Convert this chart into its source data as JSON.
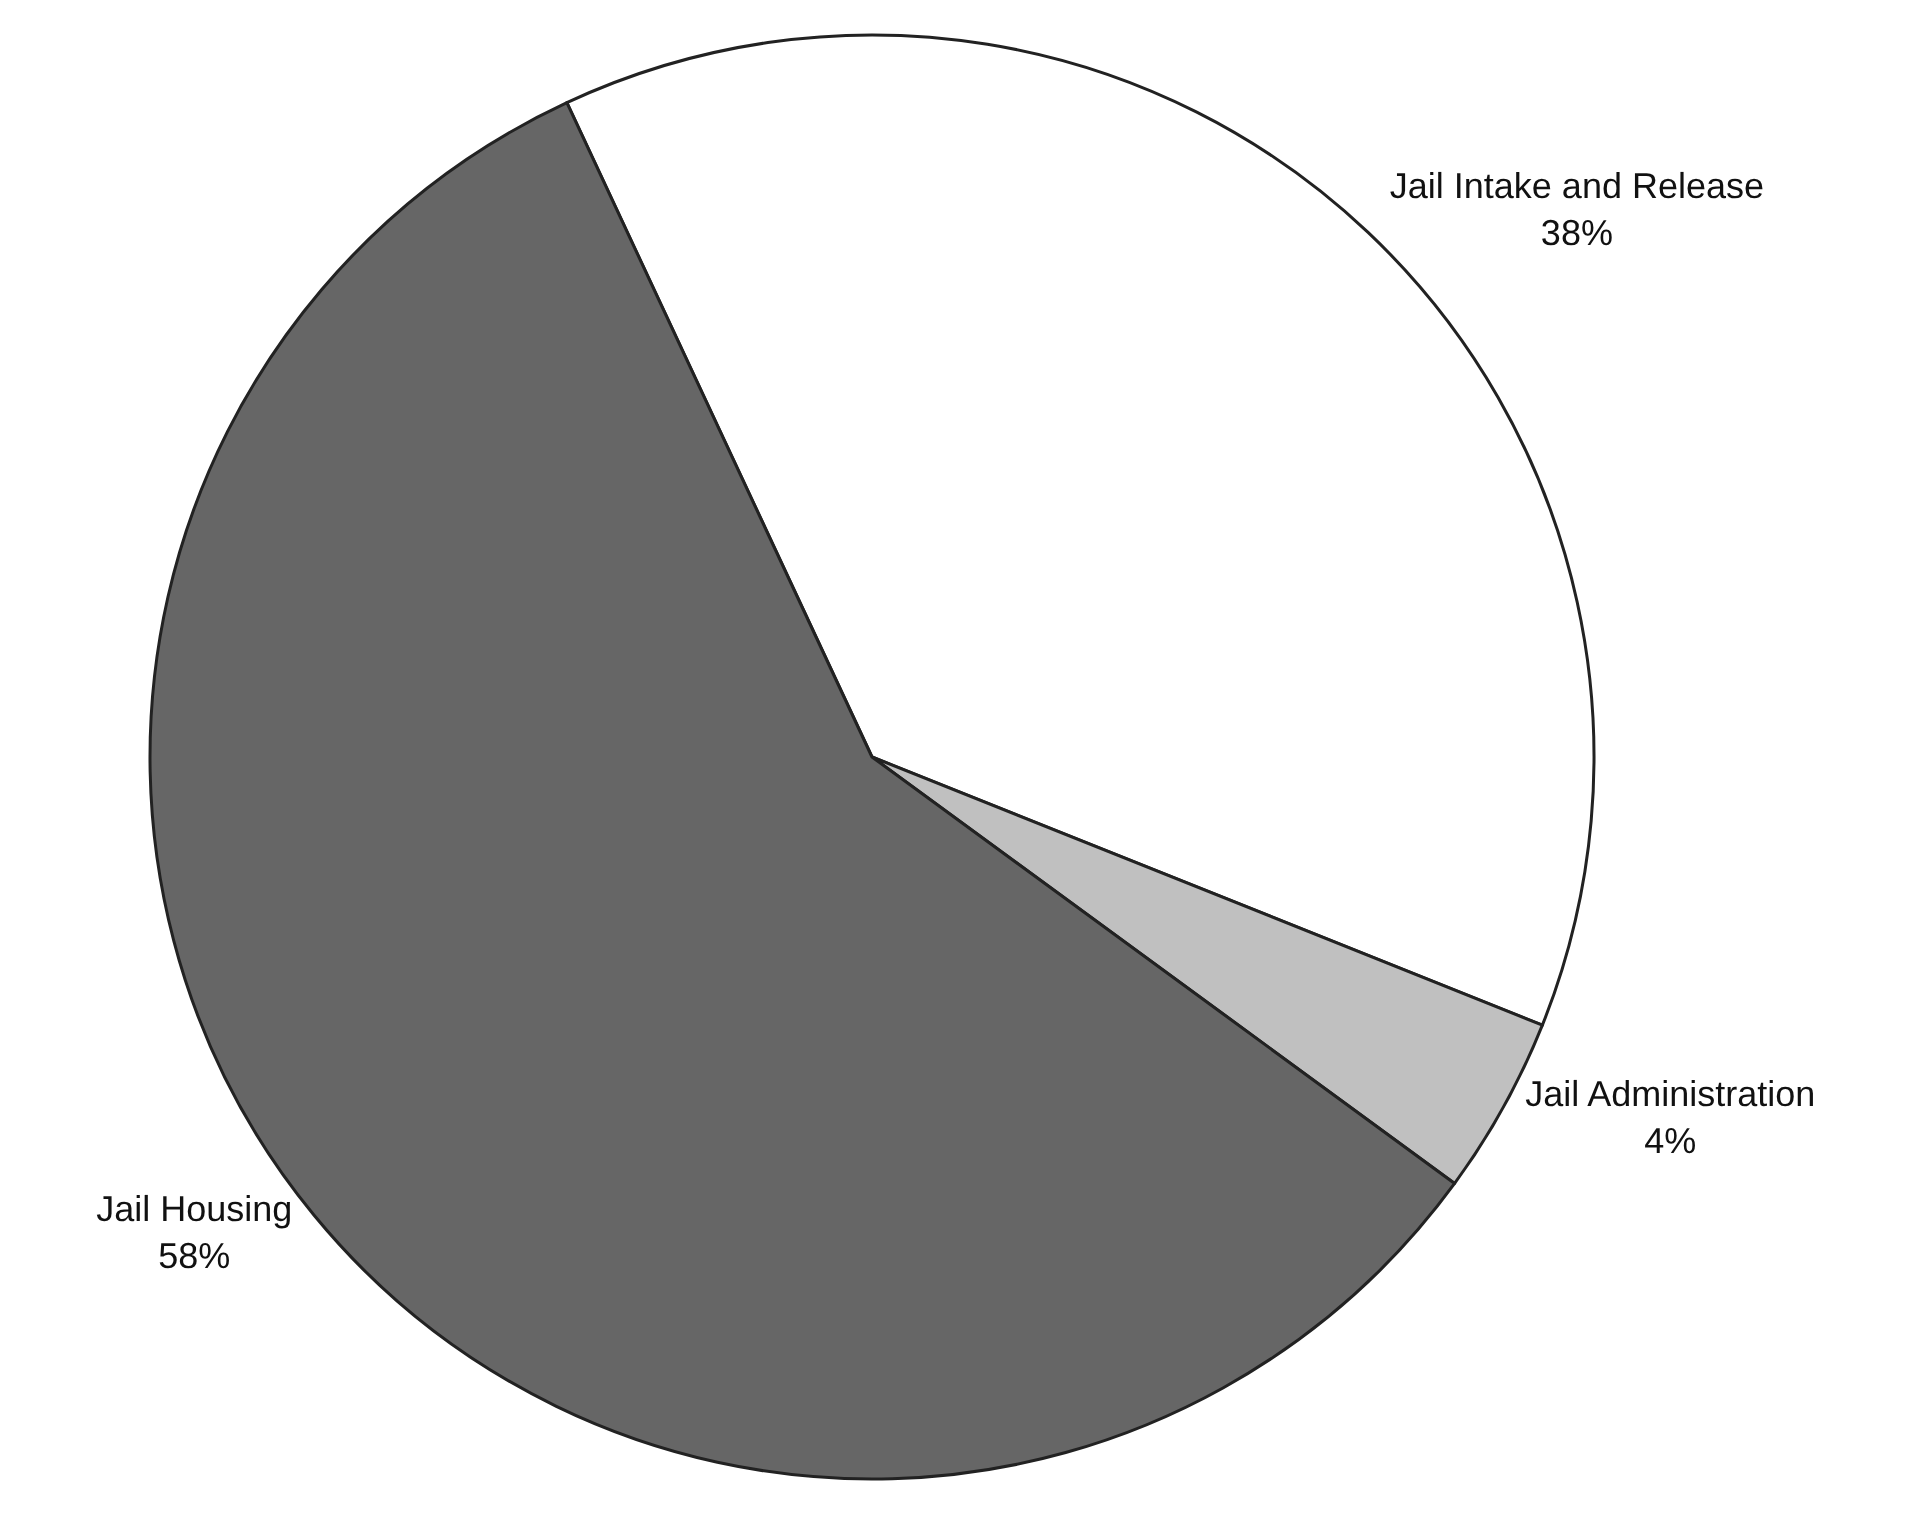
{
  "chart_data": {
    "type": "pie",
    "categories": [
      "Jail Intake and Release",
      "Jail Administration",
      "Jail Housing"
    ],
    "values": [
      38,
      4,
      58
    ],
    "value_labels": [
      "38%",
      "4%",
      "58%"
    ],
    "colors": [
      "#ffffff",
      "#c0c0c0",
      "#666666"
    ],
    "legend": false
  }
}
